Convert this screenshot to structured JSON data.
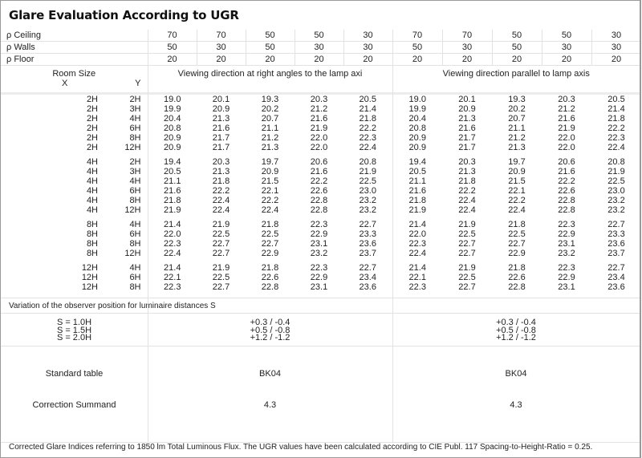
{
  "title": "Glare Evaluation According to UGR",
  "reflectances": [
    {
      "label": "ρ  Ceiling",
      "values": [
        "70",
        "70",
        "50",
        "50",
        "30",
        "70",
        "70",
        "50",
        "50",
        "30"
      ]
    },
    {
      "label": "ρ  Walls",
      "values": [
        "50",
        "30",
        "50",
        "30",
        "30",
        "50",
        "30",
        "50",
        "30",
        "30"
      ]
    },
    {
      "label": "ρ  Floor",
      "values": [
        "20",
        "20",
        "20",
        "20",
        "20",
        "20",
        "20",
        "20",
        "20",
        "20"
      ]
    }
  ],
  "header": {
    "room_size": "Room Size",
    "x": "X",
    "y": "Y",
    "right_angles": "Viewing direction at right angles to the lamp axi",
    "parallel": "Viewing direction parallel to lamp axis"
  },
  "groups": [
    [
      {
        "x": "2H",
        "y": "2H",
        "v": [
          "19.0",
          "20.1",
          "19.3",
          "20.3",
          "20.5",
          "19.0",
          "20.1",
          "19.3",
          "20.3",
          "20.5"
        ]
      },
      {
        "x": "2H",
        "y": "3H",
        "v": [
          "19.9",
          "20.9",
          "20.2",
          "21.2",
          "21.4",
          "19.9",
          "20.9",
          "20.2",
          "21.2",
          "21.4"
        ]
      },
      {
        "x": "2H",
        "y": "4H",
        "v": [
          "20.4",
          "21.3",
          "20.7",
          "21.6",
          "21.8",
          "20.4",
          "21.3",
          "20.7",
          "21.6",
          "21.8"
        ]
      },
      {
        "x": "2H",
        "y": "6H",
        "v": [
          "20.8",
          "21.6",
          "21.1",
          "21.9",
          "22.2",
          "20.8",
          "21.6",
          "21.1",
          "21.9",
          "22.2"
        ]
      },
      {
        "x": "2H",
        "y": "8H",
        "v": [
          "20.9",
          "21.7",
          "21.2",
          "22.0",
          "22.3",
          "20.9",
          "21.7",
          "21.2",
          "22.0",
          "22.3"
        ]
      },
      {
        "x": "2H",
        "y": "12H",
        "v": [
          "20.9",
          "21.7",
          "21.3",
          "22.0",
          "22.4",
          "20.9",
          "21.7",
          "21.3",
          "22.0",
          "22.4"
        ]
      }
    ],
    [
      {
        "x": "4H",
        "y": "2H",
        "v": [
          "19.4",
          "20.3",
          "19.7",
          "20.6",
          "20.8",
          "19.4",
          "20.3",
          "19.7",
          "20.6",
          "20.8"
        ]
      },
      {
        "x": "4H",
        "y": "3H",
        "v": [
          "20.5",
          "21.3",
          "20.9",
          "21.6",
          "21.9",
          "20.5",
          "21.3",
          "20.9",
          "21.6",
          "21.9"
        ]
      },
      {
        "x": "4H",
        "y": "4H",
        "v": [
          "21.1",
          "21.8",
          "21.5",
          "22.2",
          "22.5",
          "21.1",
          "21.8",
          "21.5",
          "22.2",
          "22.5"
        ]
      },
      {
        "x": "4H",
        "y": "6H",
        "v": [
          "21.6",
          "22.2",
          "22.1",
          "22.6",
          "23.0",
          "21.6",
          "22.2",
          "22.1",
          "22.6",
          "23.0"
        ]
      },
      {
        "x": "4H",
        "y": "8H",
        "v": [
          "21.8",
          "22.4",
          "22.2",
          "22.8",
          "23.2",
          "21.8",
          "22.4",
          "22.2",
          "22.8",
          "23.2"
        ]
      },
      {
        "x": "4H",
        "y": "12H",
        "v": [
          "21.9",
          "22.4",
          "22.4",
          "22.8",
          "23.2",
          "21.9",
          "22.4",
          "22.4",
          "22.8",
          "23.2"
        ]
      }
    ],
    [
      {
        "x": "8H",
        "y": "4H",
        "v": [
          "21.4",
          "21.9",
          "21.8",
          "22.3",
          "22.7",
          "21.4",
          "21.9",
          "21.8",
          "22.3",
          "22.7"
        ]
      },
      {
        "x": "8H",
        "y": "6H",
        "v": [
          "22.0",
          "22.5",
          "22.5",
          "22.9",
          "23.3",
          "22.0",
          "22.5",
          "22.5",
          "22.9",
          "23.3"
        ]
      },
      {
        "x": "8H",
        "y": "8H",
        "v": [
          "22.3",
          "22.7",
          "22.7",
          "23.1",
          "23.6",
          "22.3",
          "22.7",
          "22.7",
          "23.1",
          "23.6"
        ]
      },
      {
        "x": "8H",
        "y": "12H",
        "v": [
          "22.4",
          "22.7",
          "22.9",
          "23.2",
          "23.7",
          "22.4",
          "22.7",
          "22.9",
          "23.2",
          "23.7"
        ]
      }
    ],
    [
      {
        "x": "12H",
        "y": "4H",
        "v": [
          "21.4",
          "21.9",
          "21.8",
          "22.3",
          "22.7",
          "21.4",
          "21.9",
          "21.8",
          "22.3",
          "22.7"
        ]
      },
      {
        "x": "12H",
        "y": "6H",
        "v": [
          "22.1",
          "22.5",
          "22.6",
          "22.9",
          "23.4",
          "22.1",
          "22.5",
          "22.6",
          "22.9",
          "23.4"
        ]
      },
      {
        "x": "12H",
        "y": "8H",
        "v": [
          "22.3",
          "22.7",
          "22.8",
          "23.1",
          "23.6",
          "22.3",
          "22.7",
          "22.8",
          "23.1",
          "23.6"
        ]
      }
    ]
  ],
  "variation": {
    "label": "Variation of the observer position for luminaire distances S",
    "spacings": [
      "S = 1.0H",
      "S = 1.5H",
      "S = 2.0H"
    ],
    "right_angles": [
      "+0.3 / -0.4",
      "+0.5 / -0.8",
      "+1.2 / -1.2"
    ],
    "parallel": [
      "+0.3 / -0.4",
      "+0.5 / -0.8",
      "+1.2 / -1.2"
    ]
  },
  "standard_table": {
    "label": "Standard table",
    "right_angles": "BK04",
    "parallel": "BK04"
  },
  "correction_summand": {
    "label": "Correction Summand",
    "right_angles": "4.3",
    "parallel": "4.3"
  },
  "footer": "Corrected Glare Indices referring to 1850 lm Total Luminous Flux. The UGR values have been calculated according to CIE Publ. 117    Spacing-to-Height-Ratio = 0.25."
}
